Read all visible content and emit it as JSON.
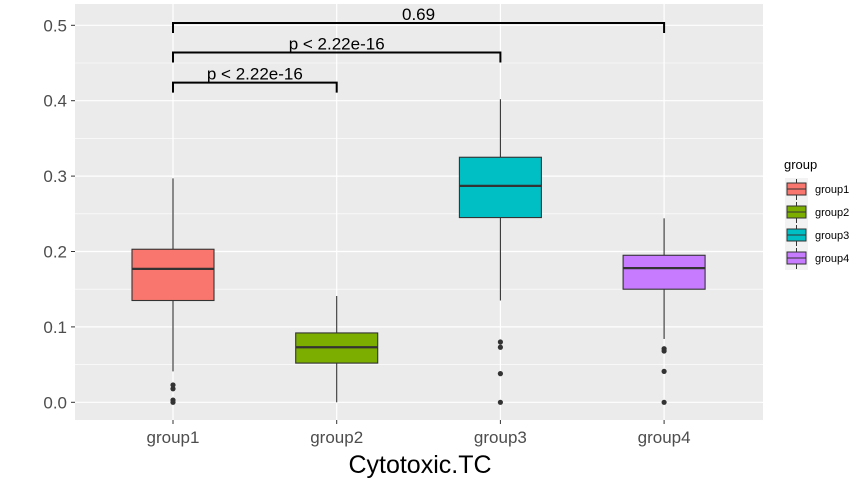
{
  "chart_data": {
    "type": "boxplot",
    "title": "",
    "xlabel": "Cytotoxic.TC",
    "ylabel": "",
    "ylim": [
      -0.025,
      0.53
    ],
    "yticks": [
      "0.0",
      "0.1",
      "0.2",
      "0.3",
      "0.4",
      "0.5"
    ],
    "ytick_values": [
      0,
      0.1,
      0.2,
      0.3,
      0.4,
      0.5
    ],
    "categories": [
      "group1",
      "group2",
      "group3",
      "group4"
    ],
    "grid": true,
    "legend": {
      "title": "group",
      "position": "right",
      "entries": [
        "group1",
        "group2",
        "group3",
        "group4"
      ]
    },
    "colors": [
      "#F8766D",
      "#7CAE00",
      "#00BFC4",
      "#C77CFF"
    ],
    "boxes": [
      {
        "group": "group1",
        "whisker_low": 0.041,
        "q1": 0.135,
        "median": 0.177,
        "q3": 0.203,
        "whisker_high": 0.297,
        "outliers": [
          0.023,
          0.018,
          0.003,
          0.0
        ]
      },
      {
        "group": "group2",
        "whisker_low": 0.0,
        "q1": 0.052,
        "median": 0.073,
        "q3": 0.092,
        "whisker_high": 0.141,
        "outliers": []
      },
      {
        "group": "group3",
        "whisker_low": 0.135,
        "q1": 0.245,
        "median": 0.287,
        "q3": 0.325,
        "whisker_high": 0.402,
        "outliers": [
          0.08,
          0.073,
          0.038,
          0.0
        ]
      },
      {
        "group": "group4",
        "whisker_low": 0.084,
        "q1": 0.15,
        "median": 0.178,
        "q3": 0.195,
        "whisker_high": 0.244,
        "outliers": [
          0.071,
          0.068,
          0.041,
          0.0
        ]
      }
    ],
    "comparisons": [
      {
        "from": "group1",
        "to": "group2",
        "label": "p < 2.22e-16",
        "y": 0.424
      },
      {
        "from": "group1",
        "to": "group3",
        "label": "p < 2.22e-16",
        "y": 0.464
      },
      {
        "from": "group1",
        "to": "group4",
        "label": "0.69",
        "y": 0.503
      }
    ]
  }
}
